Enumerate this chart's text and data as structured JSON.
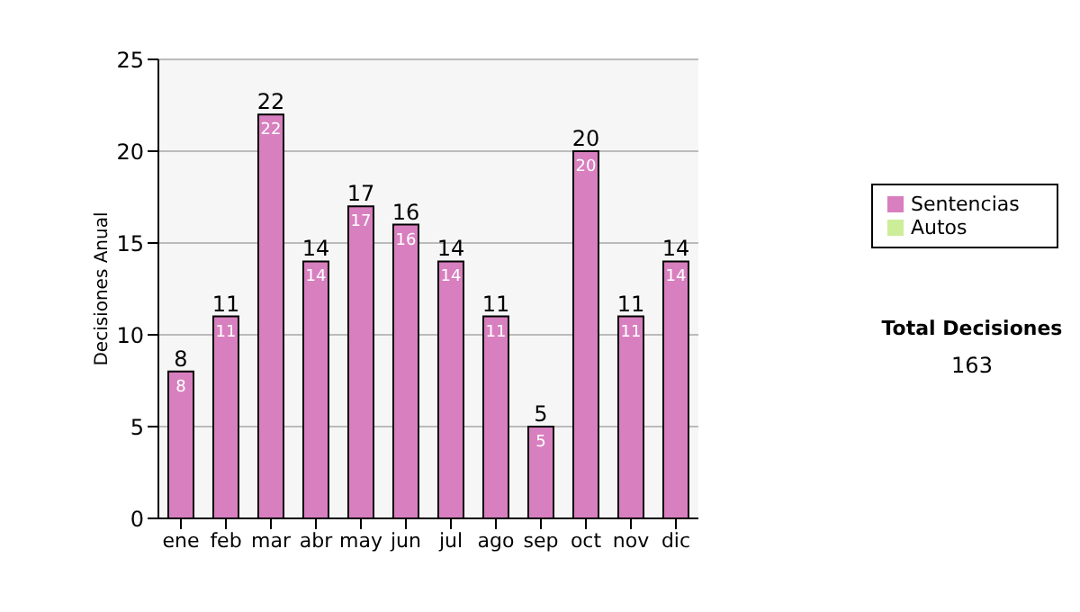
{
  "chart_data": {
    "type": "bar",
    "ylabel": "Decisiones Anual",
    "categories": [
      "ene",
      "feb",
      "mar",
      "abr",
      "may",
      "jun",
      "jul",
      "ago",
      "sep",
      "oct",
      "nov",
      "dic"
    ],
    "series": [
      {
        "name": "Sentencias",
        "color": "#d87fbf",
        "values": [
          8,
          11,
          22,
          14,
          17,
          16,
          14,
          11,
          5,
          20,
          11,
          14
        ],
        "value_labels": [
          "8",
          "11",
          "22",
          "14",
          "17",
          "16",
          "14",
          "11",
          "5",
          "20",
          "11",
          "14"
        ]
      },
      {
        "name": "Autos",
        "color": "#ccee99",
        "values": [
          null,
          null,
          null,
          null,
          null,
          null,
          null,
          null,
          null,
          null,
          null,
          null
        ]
      }
    ],
    "stacked": true,
    "totals": [
      "8",
      "11",
      "22",
      "14",
      "17",
      "16",
      "14",
      "11",
      "5",
      "20",
      "11",
      "14"
    ],
    "ylim": [
      0,
      25
    ],
    "yticks": [
      0,
      5,
      10,
      15,
      20,
      25
    ],
    "grid": "y",
    "legend": "right",
    "annotations": [
      "Total Decisiones",
      "163"
    ]
  }
}
